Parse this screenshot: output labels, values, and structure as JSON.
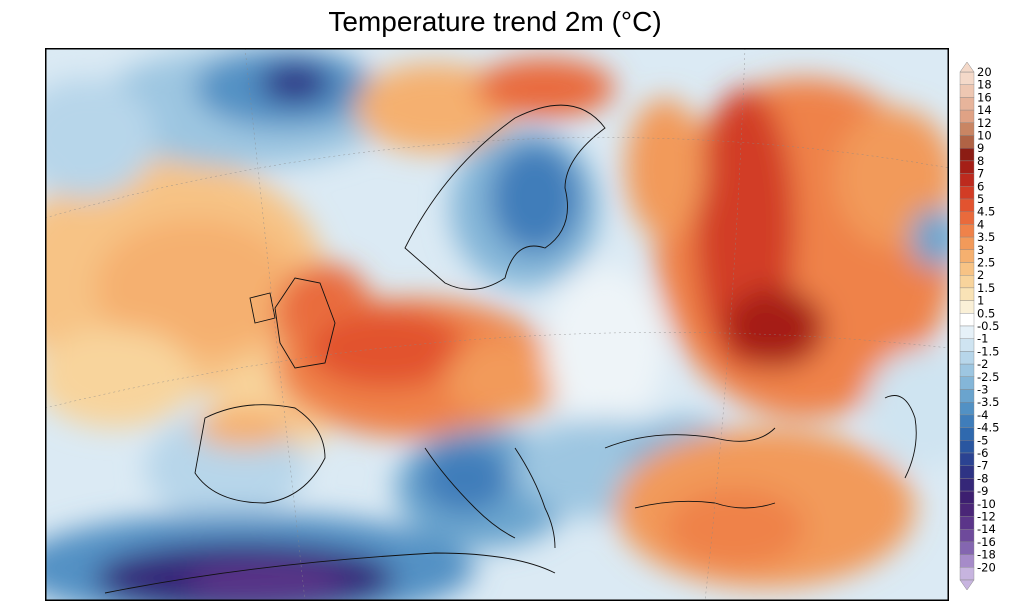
{
  "title": "Temperature trend 2m (°C)",
  "legend": {
    "labels": [
      "20",
      "18",
      "16",
      "14",
      "12",
      "10",
      "9",
      "8",
      "7",
      "6",
      "5",
      "4.5",
      "4",
      "3.5",
      "3",
      "2.5",
      "2",
      "1.5",
      "1",
      "0.5",
      "-0.5",
      "-1",
      "-1.5",
      "-2",
      "-2.5",
      "-3",
      "-3.5",
      "-4",
      "-4.5",
      "-5",
      "-6",
      "-7",
      "-8",
      "-9",
      "-10",
      "-12",
      "-14",
      "-16",
      "-18",
      "-20"
    ],
    "colors": [
      "#f4d9c9",
      "#eec7b2",
      "#e7b49b",
      "#e0a285",
      "#c98563",
      "#b06345",
      "#8c1c14",
      "#a51f17",
      "#bd2a1e",
      "#d23c25",
      "#e2532f",
      "#e96a3c",
      "#ef824a",
      "#f29a5a",
      "#f5b06f",
      "#f7c385",
      "#f8d49c",
      "#f9e3b6",
      "#faf0d7",
      "#ffffff",
      "#e6f1f8",
      "#cfe4f1",
      "#b7d6ea",
      "#9dc6e1",
      "#84b6d8",
      "#6aa4ce",
      "#5291c4",
      "#3f7dba",
      "#2f69ae",
      "#2a56a0",
      "#2b4392",
      "#2e3384",
      "#352778",
      "#3d1f70",
      "#4a2677",
      "#5b3589",
      "#6e4a9b",
      "#8466b0",
      "#a68bc9",
      "#c7b4df"
    ]
  },
  "map_fields": [
    {
      "name": "atlantic-warm-anomaly",
      "level": "2"
    },
    {
      "name": "iceland-cold-anomaly",
      "level": "-6"
    },
    {
      "name": "scandinavia-cold-anomaly",
      "level": "-4"
    },
    {
      "name": "western-europe-warm-anomaly",
      "level": "3.5"
    },
    {
      "name": "balkans-cold-anomaly",
      "level": "-3.5"
    },
    {
      "name": "north-africa-cold-anomaly",
      "level": "-8"
    },
    {
      "name": "russia-warm-anomaly",
      "level": "6"
    },
    {
      "name": "middle-east-warm-anomaly",
      "level": "3"
    }
  ]
}
